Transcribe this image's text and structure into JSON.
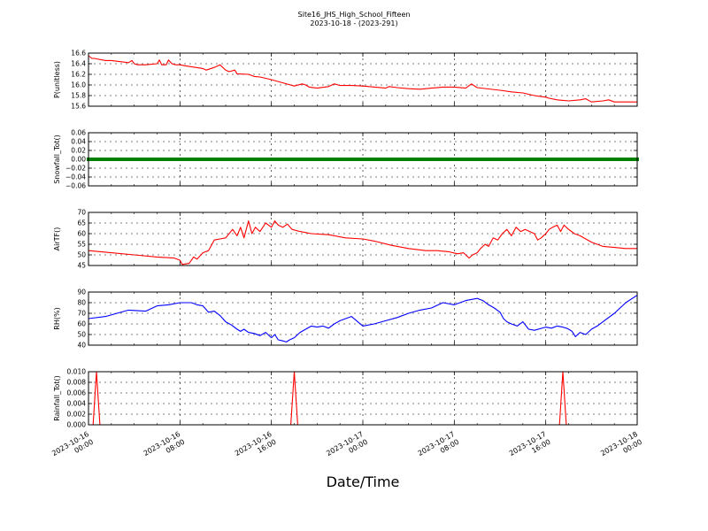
{
  "chart_data": {
    "title": "Site16_JHS_High_School_Fifteen",
    "subtitle": "2023-10-18 - (2023-291)",
    "xlabel": "Date/Time",
    "x_ticks": [
      [
        "2023-10-16",
        "00:00"
      ],
      [
        "2023-10-16",
        "08:00"
      ],
      [
        "2023-10-16",
        "16:00"
      ],
      [
        "2023-10-17",
        "00:00"
      ],
      [
        "2023-10-17",
        "08:00"
      ],
      [
        "2023-10-17",
        "16:00"
      ],
      [
        "2023-10-18",
        "00:00"
      ]
    ],
    "x_range_hours": [
      0,
      48
    ],
    "grid": true,
    "panels": [
      {
        "type": "line",
        "ylabel": "P(unitless)",
        "color": "#ff0000",
        "ylim": [
          15.6,
          16.6
        ],
        "yticks": [
          "15.6",
          "15.8",
          "16.0",
          "16.2",
          "16.4",
          "16.6"
        ],
        "x": [
          0,
          0.3,
          0.5,
          1.5,
          2.0,
          3.5,
          3.8,
          4.0,
          4.3,
          5.0,
          6.0,
          6.2,
          6.4,
          6.8,
          7.0,
          7.3,
          7.6,
          8.0,
          8.5,
          10.0,
          10.3,
          11.0,
          11.5,
          12.0,
          12.3,
          12.8,
          13.0,
          14.0,
          14.5,
          15.0,
          16.0,
          17.0,
          18.0,
          18.7,
          19.0,
          19.3,
          20.0,
          21.0,
          21.5,
          22.0,
          23.0,
          24.0,
          26.0,
          26.3,
          27.0,
          28.0,
          29.0,
          30.0,
          31.0,
          32.0,
          33.0,
          33.5,
          34.0,
          36.0,
          37.0,
          38.0,
          39.0,
          40.0,
          40.3,
          41.0,
          42.0,
          43.0,
          43.5,
          44.0,
          45.0,
          45.5,
          46.0,
          47.0,
          48.0
        ],
        "values": [
          16.55,
          16.5,
          16.5,
          16.46,
          16.46,
          16.42,
          16.46,
          16.4,
          16.38,
          16.38,
          16.4,
          16.47,
          16.38,
          16.38,
          16.47,
          16.4,
          16.38,
          16.38,
          16.36,
          16.31,
          16.28,
          16.33,
          16.38,
          16.28,
          16.25,
          16.28,
          16.21,
          16.2,
          16.16,
          16.15,
          16.1,
          16.04,
          15.98,
          16.02,
          16.0,
          15.96,
          15.94,
          15.97,
          16.02,
          15.99,
          15.99,
          15.98,
          15.94,
          15.97,
          15.95,
          15.93,
          15.92,
          15.94,
          15.96,
          15.96,
          15.94,
          16.02,
          15.95,
          15.9,
          15.87,
          15.85,
          15.8,
          15.77,
          15.75,
          15.72,
          15.7,
          15.72,
          15.74,
          15.68,
          15.7,
          15.72,
          15.68,
          15.68,
          15.68
        ]
      },
      {
        "type": "scatter",
        "ylabel": "Snowfall_Tot()",
        "color": "#008000",
        "ylim": [
          -0.06,
          0.06
        ],
        "yticks": [
          "−0.06",
          "−0.04",
          "−0.02",
          "0.00",
          "0.02",
          "0.04",
          "0.06"
        ],
        "x": [
          0,
          48
        ],
        "values": [
          0.0,
          0.0
        ],
        "constant_value": 0.0
      },
      {
        "type": "line",
        "ylabel": "AirTF()",
        "color": "#ff0000",
        "ylim": [
          45,
          70
        ],
        "yticks": [
          "45",
          "50",
          "55",
          "60",
          "65",
          "70"
        ],
        "x": [
          0,
          2,
          4,
          6,
          7.5,
          8.0,
          8.2,
          8.8,
          9.2,
          9.5,
          10.0,
          10.5,
          11.0,
          11.5,
          12.0,
          12.3,
          12.6,
          13.0,
          13.3,
          13.6,
          14.0,
          14.3,
          14.6,
          15.0,
          15.5,
          16.0,
          16.3,
          16.6,
          17.0,
          17.4,
          17.8,
          18.5,
          19.5,
          21.0,
          22.5,
          24.0,
          25.0,
          26.5,
          28.0,
          29.5,
          30.5,
          31.5,
          32.3,
          32.8,
          33.3,
          33.6,
          34.0,
          34.3,
          34.7,
          35.0,
          35.4,
          35.8,
          36.2,
          36.6,
          37.0,
          37.4,
          37.8,
          38.2,
          38.6,
          39.0,
          39.3,
          39.6,
          40.0,
          40.3,
          40.6,
          41.0,
          41.3,
          41.6,
          42.0,
          42.5,
          43.0,
          44.0,
          45.0,
          46.0,
          47.0,
          48.0
        ],
        "values": [
          52,
          51,
          50,
          49,
          48.5,
          47.5,
          45.5,
          46,
          49,
          48,
          51,
          52,
          57,
          57.5,
          58,
          60,
          62,
          59,
          63,
          58,
          66,
          60,
          63,
          61,
          65,
          63,
          66,
          64,
          63,
          64.5,
          62,
          61,
          60,
          59.5,
          58,
          57.5,
          56.5,
          54.5,
          53,
          52,
          52,
          51.5,
          50.5,
          51,
          48.5,
          50,
          51,
          53,
          55,
          54,
          58,
          57,
          60,
          62,
          59,
          63,
          61,
          62,
          61,
          60,
          57,
          58,
          60,
          62,
          63,
          64,
          61,
          64,
          62,
          60,
          59,
          56,
          54,
          53.5,
          53,
          53
        ]
      },
      {
        "type": "line",
        "ylabel": "RH(%)",
        "color": "#0000ff",
        "ylim": [
          40,
          90
        ],
        "yticks": [
          "40",
          "50",
          "60",
          "70",
          "80",
          "90"
        ],
        "x": [
          0,
          1.5,
          2.5,
          3.5,
          5.0,
          6.0,
          7.0,
          8.0,
          9.0,
          9.5,
          10.0,
          10.5,
          11.0,
          11.5,
          12.0,
          12.5,
          13.0,
          13.3,
          13.6,
          14.0,
          14.5,
          15.0,
          15.5,
          16.0,
          16.3,
          16.6,
          17.0,
          17.3,
          17.6,
          18.0,
          18.5,
          19.0,
          19.5,
          20.0,
          20.5,
          21.0,
          21.5,
          22.0,
          22.5,
          23.0,
          24.0,
          25.0,
          26.0,
          27.0,
          28.0,
          29.0,
          30.0,
          31.0,
          32.0,
          33.0,
          34.0,
          34.5,
          35.0,
          35.5,
          36.0,
          36.3,
          36.6,
          37.0,
          37.5,
          38.0,
          38.5,
          39.0,
          40.0,
          40.5,
          41.0,
          41.5,
          41.8,
          42.0,
          42.3,
          42.6,
          43.0,
          43.5,
          44.0,
          44.5,
          45.0,
          46.0,
          47.0,
          48.0
        ],
        "values": [
          65,
          67,
          70,
          73,
          72,
          77,
          78,
          80,
          80,
          78,
          77,
          71,
          72,
          68,
          62,
          59,
          55,
          53,
          55,
          52,
          51,
          49,
          52,
          47,
          50,
          45,
          44,
          43,
          45,
          47,
          52,
          55,
          58,
          57,
          58,
          56,
          60,
          63,
          65,
          67,
          58,
          60,
          63,
          66,
          70,
          73,
          75,
          80,
          78,
          82,
          84,
          82,
          78,
          75,
          71,
          65,
          62,
          60,
          58,
          62,
          55,
          54,
          57,
          56,
          58,
          57,
          56,
          55,
          53,
          48,
          52,
          50,
          55,
          58,
          62,
          70,
          80,
          87
        ]
      },
      {
        "type": "line",
        "ylabel": "Rainfall_Tot()",
        "color": "#ff0000",
        "ylim": [
          0.0,
          0.01
        ],
        "yticks": [
          "0.000",
          "0.002",
          "0.004",
          "0.006",
          "0.008",
          "0.010"
        ],
        "x": [
          0,
          0.4,
          0.7,
          1.0,
          17.7,
          18.0,
          18.3,
          41.2,
          41.5,
          41.8,
          48
        ],
        "values": [
          0,
          0,
          0.01,
          0,
          0,
          0.01,
          0,
          0,
          0.01,
          0,
          0
        ]
      }
    ]
  }
}
